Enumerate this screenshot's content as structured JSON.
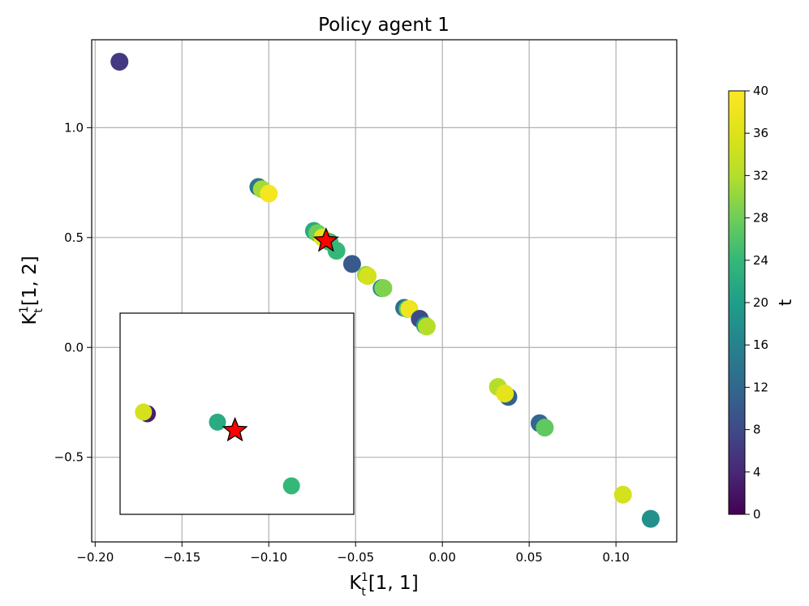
{
  "chart_data": {
    "type": "scatter",
    "title": "Policy agent 1",
    "xlabel": "K_t^1[1,1]",
    "ylabel": "K_t^1[1,2]",
    "xlim": [
      -0.202,
      0.135
    ],
    "ylim": [
      -0.885,
      1.4
    ],
    "x_ticks": [
      -0.2,
      -0.15,
      -0.1,
      -0.05,
      0.0,
      0.05,
      0.1
    ],
    "x_tick_labels": [
      "−0.20",
      "−0.15",
      "−0.10",
      "−0.05",
      "0.00",
      "0.05",
      "0.10"
    ],
    "y_ticks": [
      -0.5,
      0.0,
      0.5,
      1.0
    ],
    "y_tick_labels": [
      "−0.5",
      "0.0",
      "0.5",
      "1.0"
    ],
    "grid": true,
    "colorbar": {
      "label": "t",
      "colormap": "viridis",
      "range": [
        0,
        40
      ],
      "ticks": [
        0,
        4,
        8,
        12,
        16,
        20,
        24,
        28,
        32,
        36,
        40
      ],
      "tick_labels": [
        "0",
        "4",
        "8",
        "12",
        "16",
        "20",
        "24",
        "28",
        "32",
        "36",
        "40"
      ]
    },
    "points": [
      {
        "x": -0.186,
        "y": 1.3,
        "t": 6
      },
      {
        "x": -0.106,
        "y": 0.73,
        "t": 14
      },
      {
        "x": -0.104,
        "y": 0.72,
        "t": 31
      },
      {
        "x": -0.1,
        "y": 0.7,
        "t": 39
      },
      {
        "x": -0.074,
        "y": 0.53,
        "t": 22
      },
      {
        "x": -0.072,
        "y": 0.52,
        "t": 28
      },
      {
        "x": -0.069,
        "y": 0.5,
        "t": 37
      },
      {
        "x": -0.065,
        "y": 0.48,
        "t": 25
      },
      {
        "x": -0.061,
        "y": 0.44,
        "t": 24
      },
      {
        "x": -0.052,
        "y": 0.38,
        "t": 10
      },
      {
        "x": -0.044,
        "y": 0.33,
        "t": 30
      },
      {
        "x": -0.043,
        "y": 0.325,
        "t": 35
      },
      {
        "x": -0.035,
        "y": 0.27,
        "t": 17
      },
      {
        "x": -0.034,
        "y": 0.27,
        "t": 29
      },
      {
        "x": -0.022,
        "y": 0.18,
        "t": 13
      },
      {
        "x": -0.02,
        "y": 0.175,
        "t": 27
      },
      {
        "x": -0.019,
        "y": 0.175,
        "t": 38
      },
      {
        "x": -0.013,
        "y": 0.13,
        "t": 8
      },
      {
        "x": -0.01,
        "y": 0.1,
        "t": 20
      },
      {
        "x": -0.009,
        "y": 0.095,
        "t": 32
      },
      {
        "x": 0.032,
        "y": -0.18,
        "t": 32
      },
      {
        "x": 0.038,
        "y": -0.225,
        "t": 11
      },
      {
        "x": 0.036,
        "y": -0.21,
        "t": 37
      },
      {
        "x": 0.056,
        "y": -0.345,
        "t": 12
      },
      {
        "x": 0.059,
        "y": -0.365,
        "t": 27
      },
      {
        "x": 0.104,
        "y": -0.67,
        "t": 35
      },
      {
        "x": 0.12,
        "y": -0.78,
        "t": 18
      }
    ],
    "star": {
      "x": -0.067,
      "y": 0.485
    },
    "inset": {
      "xlim": [
        -0.3,
        0.3
      ],
      "ylim": [
        -0.3,
        0.3
      ],
      "points": [
        {
          "x": -0.23,
          "y": 0.0,
          "t": 3
        },
        {
          "x": -0.24,
          "y": 0.005,
          "t": 35
        },
        {
          "x": -0.05,
          "y": -0.025,
          "t": 22
        },
        {
          "x": 0.14,
          "y": -0.215,
          "t": 24
        }
      ],
      "star": {
        "x": -0.005,
        "y": -0.05
      }
    }
  }
}
